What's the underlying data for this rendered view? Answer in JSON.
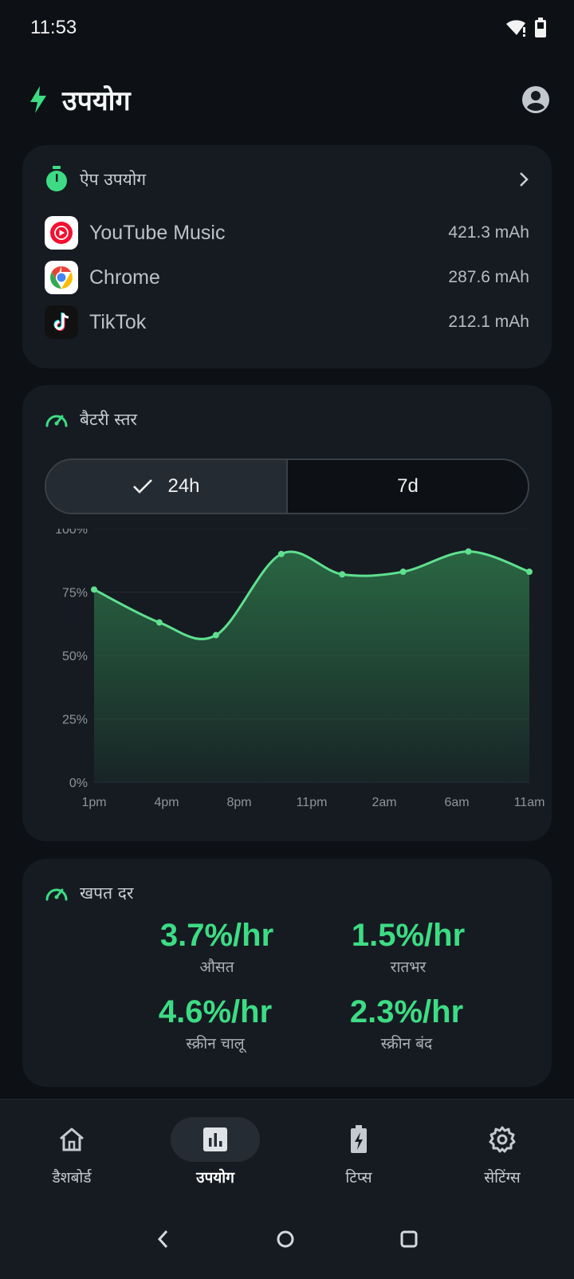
{
  "status_bar": {
    "time": "11:53",
    "icons": [
      "wifi-alert-icon",
      "battery-icon"
    ]
  },
  "header": {
    "title": "उपयोग",
    "icon": "bolt-icon",
    "profile_icon": "account-icon"
  },
  "app_usage": {
    "title": "ऐप उपयोग",
    "icon": "timer-icon",
    "apps": [
      {
        "name": "YouTube Music",
        "value": "421.3 mAh",
        "icon": "youtube-music-icon"
      },
      {
        "name": "Chrome",
        "value": "287.6 mAh",
        "icon": "chrome-icon"
      },
      {
        "name": "TikTok",
        "value": "212.1 mAh",
        "icon": "tiktok-icon"
      }
    ]
  },
  "battery_level": {
    "title": "बैटरी स्तर",
    "icon": "speedometer-icon",
    "toggle": {
      "option_1": "24h",
      "option_2": "7d",
      "selected": "24h"
    }
  },
  "chart_data": {
    "type": "area",
    "categories": [
      "1pm",
      "4pm",
      "8pm",
      "11pm",
      "2am",
      "6am",
      "11am"
    ],
    "x": [
      0,
      0.15,
      0.28,
      0.43,
      0.57,
      0.71,
      0.86,
      1.0
    ],
    "series": [
      {
        "values": [
          76,
          63,
          58,
          90,
          82,
          83,
          91,
          83
        ]
      }
    ],
    "y_ticks": [
      "0%",
      "25%",
      "50%",
      "75%",
      "100%"
    ],
    "ylim": [
      0,
      100
    ],
    "grid": true,
    "colors": {
      "line": "#5fe08f",
      "fill": "#2a6a44"
    }
  },
  "consumption": {
    "title": "खपत दर",
    "icon": "speedometer-icon",
    "rates": [
      {
        "value": "3.7%/hr",
        "label": "औसत"
      },
      {
        "value": "1.5%/hr",
        "label": "रातभर"
      },
      {
        "value": "4.6%/hr",
        "label": "स्क्रीन चालू"
      },
      {
        "value": "2.3%/hr",
        "label": "स्क्रीन बंद"
      }
    ]
  },
  "bottom_nav": [
    {
      "label": "डैशबोर्ड",
      "icon": "home-icon"
    },
    {
      "label": "उपयोग",
      "icon": "bar-chart-icon",
      "active": true
    },
    {
      "label": "टिप्स",
      "icon": "battery-charging-icon"
    },
    {
      "label": "सेटिंग्स",
      "icon": "gear-icon"
    }
  ],
  "colors": {
    "accent": "#3ddc84",
    "background": "#0d1014",
    "card": "#161b22"
  }
}
